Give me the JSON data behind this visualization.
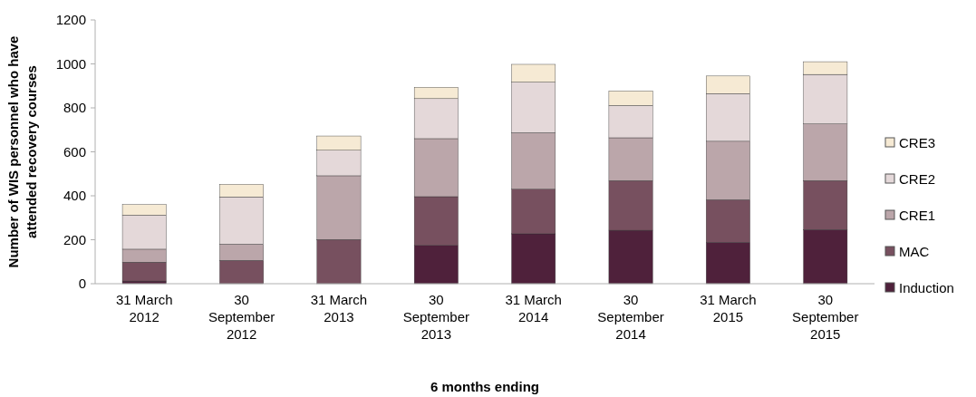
{
  "chart_data": {
    "type": "bar",
    "stacked": true,
    "xlabel": "6 months ending",
    "ylabel": "Number of WIS personnel who have attended recovery courses",
    "categories": [
      "31 March 2012",
      "30 September 2012",
      "31 March 2013",
      "30 September 2013",
      "31 March 2014",
      "30 September 2014",
      "31 March 2015",
      "30 September 2015"
    ],
    "series": [
      {
        "name": "Induction",
        "color": "#4f213b",
        "values": [
          12,
          0,
          0,
          174,
          227,
          243,
          188,
          246
        ]
      },
      {
        "name": "MAC",
        "color": "#77505f",
        "values": [
          86,
          106,
          201,
          222,
          203,
          226,
          194,
          223
        ]
      },
      {
        "name": "CRE1",
        "color": "#bba6aa",
        "values": [
          59,
          74,
          290,
          264,
          257,
          195,
          266,
          258
        ]
      },
      {
        "name": "CRE2",
        "color": "#e4d8d9",
        "values": [
          155,
          215,
          116,
          182,
          230,
          147,
          217,
          225
        ]
      },
      {
        "name": "CRE3",
        "color": "#f6ead4",
        "values": [
          48,
          57,
          65,
          52,
          81,
          66,
          80,
          58
        ]
      }
    ],
    "ylim": [
      0,
      1200
    ],
    "yticks": [
      0,
      200,
      400,
      600,
      800,
      1000,
      1200
    ],
    "grid": false,
    "legend": "right"
  }
}
